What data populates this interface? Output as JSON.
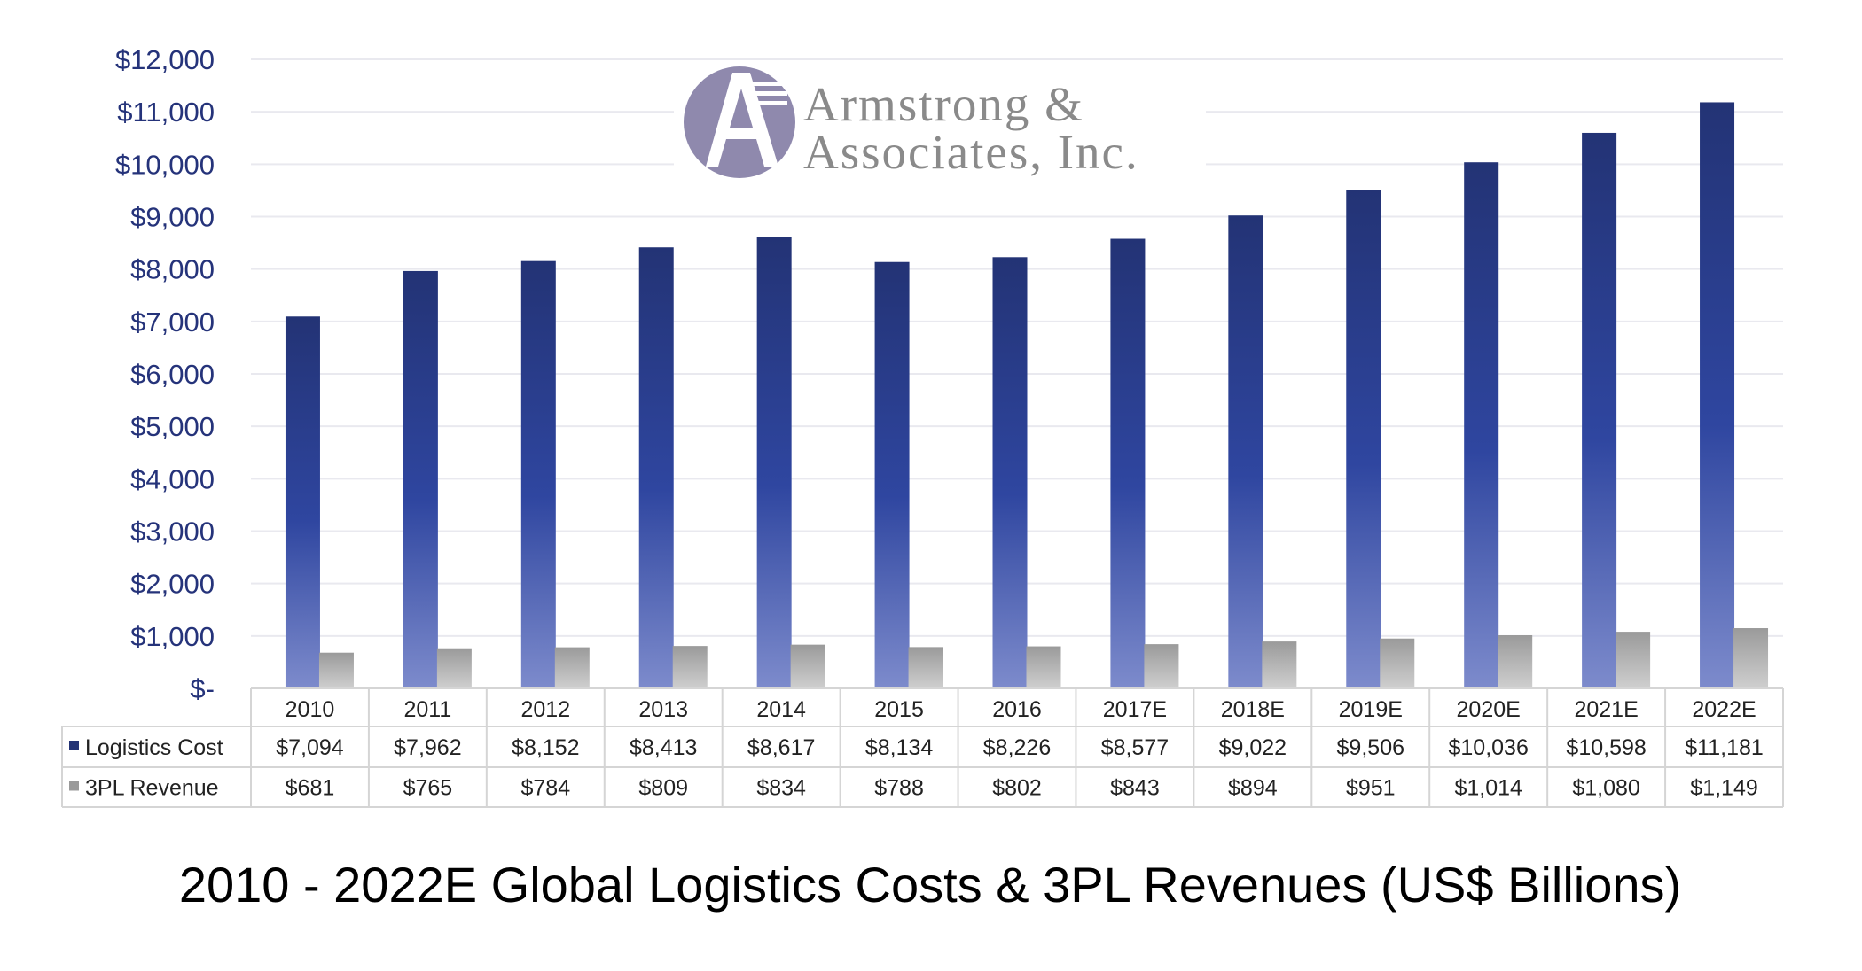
{
  "logo": {
    "line1": "Armstrong &",
    "line2": "Associates, Inc."
  },
  "colors": {
    "logistics_top": "#233375",
    "logistics_bottom": "#7d8bcc",
    "revenue_top": "#9a9a9a",
    "revenue_bottom": "#cfcfcf",
    "axis_text": "#25337a",
    "grid": "#e9e9ef",
    "table_border": "#d5d5d5",
    "logo_circle": "#8f89ad"
  },
  "chart_data": {
    "type": "bar",
    "title": "2010 - 2022E Global Logistics Costs & 3PL Revenues (US$ Billions)",
    "categories": [
      "2010",
      "2011",
      "2012",
      "2013",
      "2014",
      "2015",
      "2016",
      "2017E",
      "2018E",
      "2019E",
      "2020E",
      "2021E",
      "2022E"
    ],
    "series": [
      {
        "name": "Logistics Cost",
        "values": [
          7094,
          7962,
          8152,
          8413,
          8617,
          8134,
          8226,
          8577,
          9022,
          9506,
          10036,
          10598,
          11181
        ],
        "labels": [
          "$7,094",
          "$7,962",
          "$8,152",
          "$8,413",
          "$8,617",
          "$8,134",
          "$8,226",
          "$8,577",
          "$9,022",
          "$9,506",
          "$10,036",
          "$10,598",
          "$11,181"
        ]
      },
      {
        "name": "3PL Revenue",
        "values": [
          681,
          765,
          784,
          809,
          834,
          788,
          802,
          843,
          894,
          951,
          1014,
          1080,
          1149
        ],
        "labels": [
          "$681",
          "$765",
          "$784",
          "$809",
          "$834",
          "$788",
          "$802",
          "$843",
          "$894",
          "$951",
          "$1,014",
          "$1,080",
          "$1,149"
        ]
      }
    ],
    "ylim": [
      0,
      12000
    ],
    "yticks": [
      0,
      1000,
      2000,
      3000,
      4000,
      5000,
      6000,
      7000,
      8000,
      9000,
      10000,
      11000,
      12000
    ],
    "ytick_labels": [
      "$-",
      "$1,000",
      "$2,000",
      "$3,000",
      "$4,000",
      "$5,000",
      "$6,000",
      "$7,000",
      "$8,000",
      "$9,000",
      "$10,000",
      "$11,000",
      "$12,000"
    ],
    "grid": true,
    "legend": "data-table"
  }
}
